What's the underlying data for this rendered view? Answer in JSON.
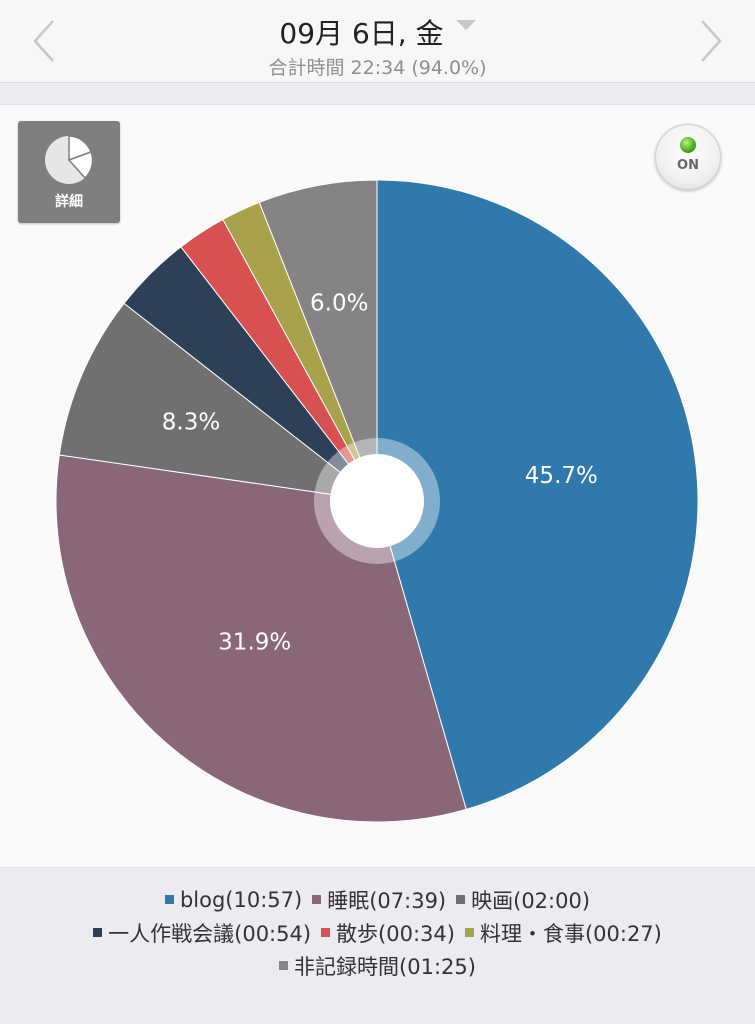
{
  "header": {
    "date_title": "09月 6日, 金",
    "subtitle": "合計時間 22:34 (94.0%)"
  },
  "detail_button": {
    "label": "詳細"
  },
  "toggle": {
    "label": "ON"
  },
  "colors": {
    "background": "#fafafa",
    "hole": "#ffffff"
  },
  "chart_data": {
    "type": "pie",
    "start_angle_deg": 0,
    "direction": "clockwise",
    "slices": [
      {
        "name": "blog",
        "time": "10:57",
        "percent": 45.7,
        "label": "45.7%",
        "color": "#3079ad"
      },
      {
        "name": "睡眠",
        "time": "07:39",
        "percent": 31.9,
        "label": "31.9%",
        "color": "#896779"
      },
      {
        "name": "映画",
        "time": "02:00",
        "percent": 8.3,
        "label": "8.3%",
        "color": "#707070"
      },
      {
        "name": "一人作戦会議",
        "time": "00:54",
        "percent": 4.0,
        "label": "",
        "color": "#2e3f58"
      },
      {
        "name": "散歩",
        "time": "00:34",
        "percent": 2.5,
        "label": "",
        "color": "#d85151"
      },
      {
        "name": "料理・食事",
        "time": "00:27",
        "percent": 2.0,
        "label": "",
        "color": "#a8a34b"
      },
      {
        "name": "非記録時間",
        "time": "01:25",
        "percent": 6.0,
        "label": "6.0%",
        "color": "#848484"
      }
    ]
  },
  "legend": {
    "rows": [
      [
        {
          "text": "blog(10:57)",
          "color": "#3079ad"
        },
        {
          "text": "睡眠(07:39)",
          "color": "#896779"
        },
        {
          "text": "映画(02:00)",
          "color": "#707070"
        }
      ],
      [
        {
          "text": "一人作戦会議(00:54)",
          "color": "#2e3f58"
        },
        {
          "text": "散歩(00:34)",
          "color": "#d85151"
        },
        {
          "text": "料理・食事(00:27)",
          "color": "#a8a34b"
        }
      ],
      [
        {
          "text": "非記録時間(01:25)",
          "color": "#848484"
        }
      ]
    ]
  }
}
